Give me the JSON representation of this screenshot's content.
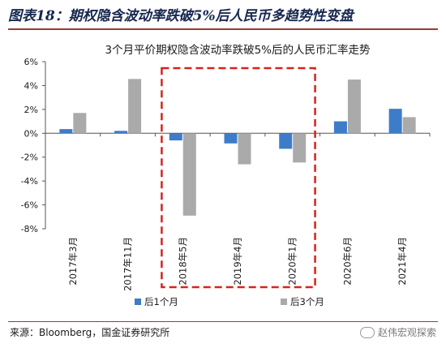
{
  "figure": {
    "title": "图表18：期权隐含波动率跌破5%后人民币多趋势性变盘",
    "source": "来源：Bloomberg，国金证券研究所",
    "watermark": "赵伟宏观探索"
  },
  "colors": {
    "series_1": "#3d7cc9",
    "series_2": "#aaaaaa",
    "highlight": "#d5231c",
    "title": "#17284f",
    "rule": "#9a3b34"
  },
  "chart_data": {
    "type": "bar",
    "title": "3个月平价期权隐含波动率跌破5%后的人民币汇率走势",
    "categories": [
      "2017年3月",
      "2017年11月",
      "2018年5月",
      "2019年4月",
      "2020年1月",
      "2020年6月",
      "2021年4月"
    ],
    "series": [
      {
        "name": "后1个月",
        "values": [
          0.35,
          0.2,
          -0.6,
          -0.85,
          -1.3,
          1.0,
          2.05
        ]
      },
      {
        "name": "后3个月",
        "values": [
          1.7,
          4.55,
          -6.9,
          -2.6,
          -2.45,
          4.5,
          1.35
        ]
      }
    ],
    "ylim": [
      -8,
      6
    ],
    "yticks": [
      "-8%",
      "-6%",
      "-4%",
      "-2%",
      "0%",
      "2%",
      "4%",
      "6%"
    ],
    "grid": false,
    "legend": "bottom",
    "highlighted_categories": [
      "2018年5月",
      "2019年4月",
      "2020年1月"
    ]
  }
}
